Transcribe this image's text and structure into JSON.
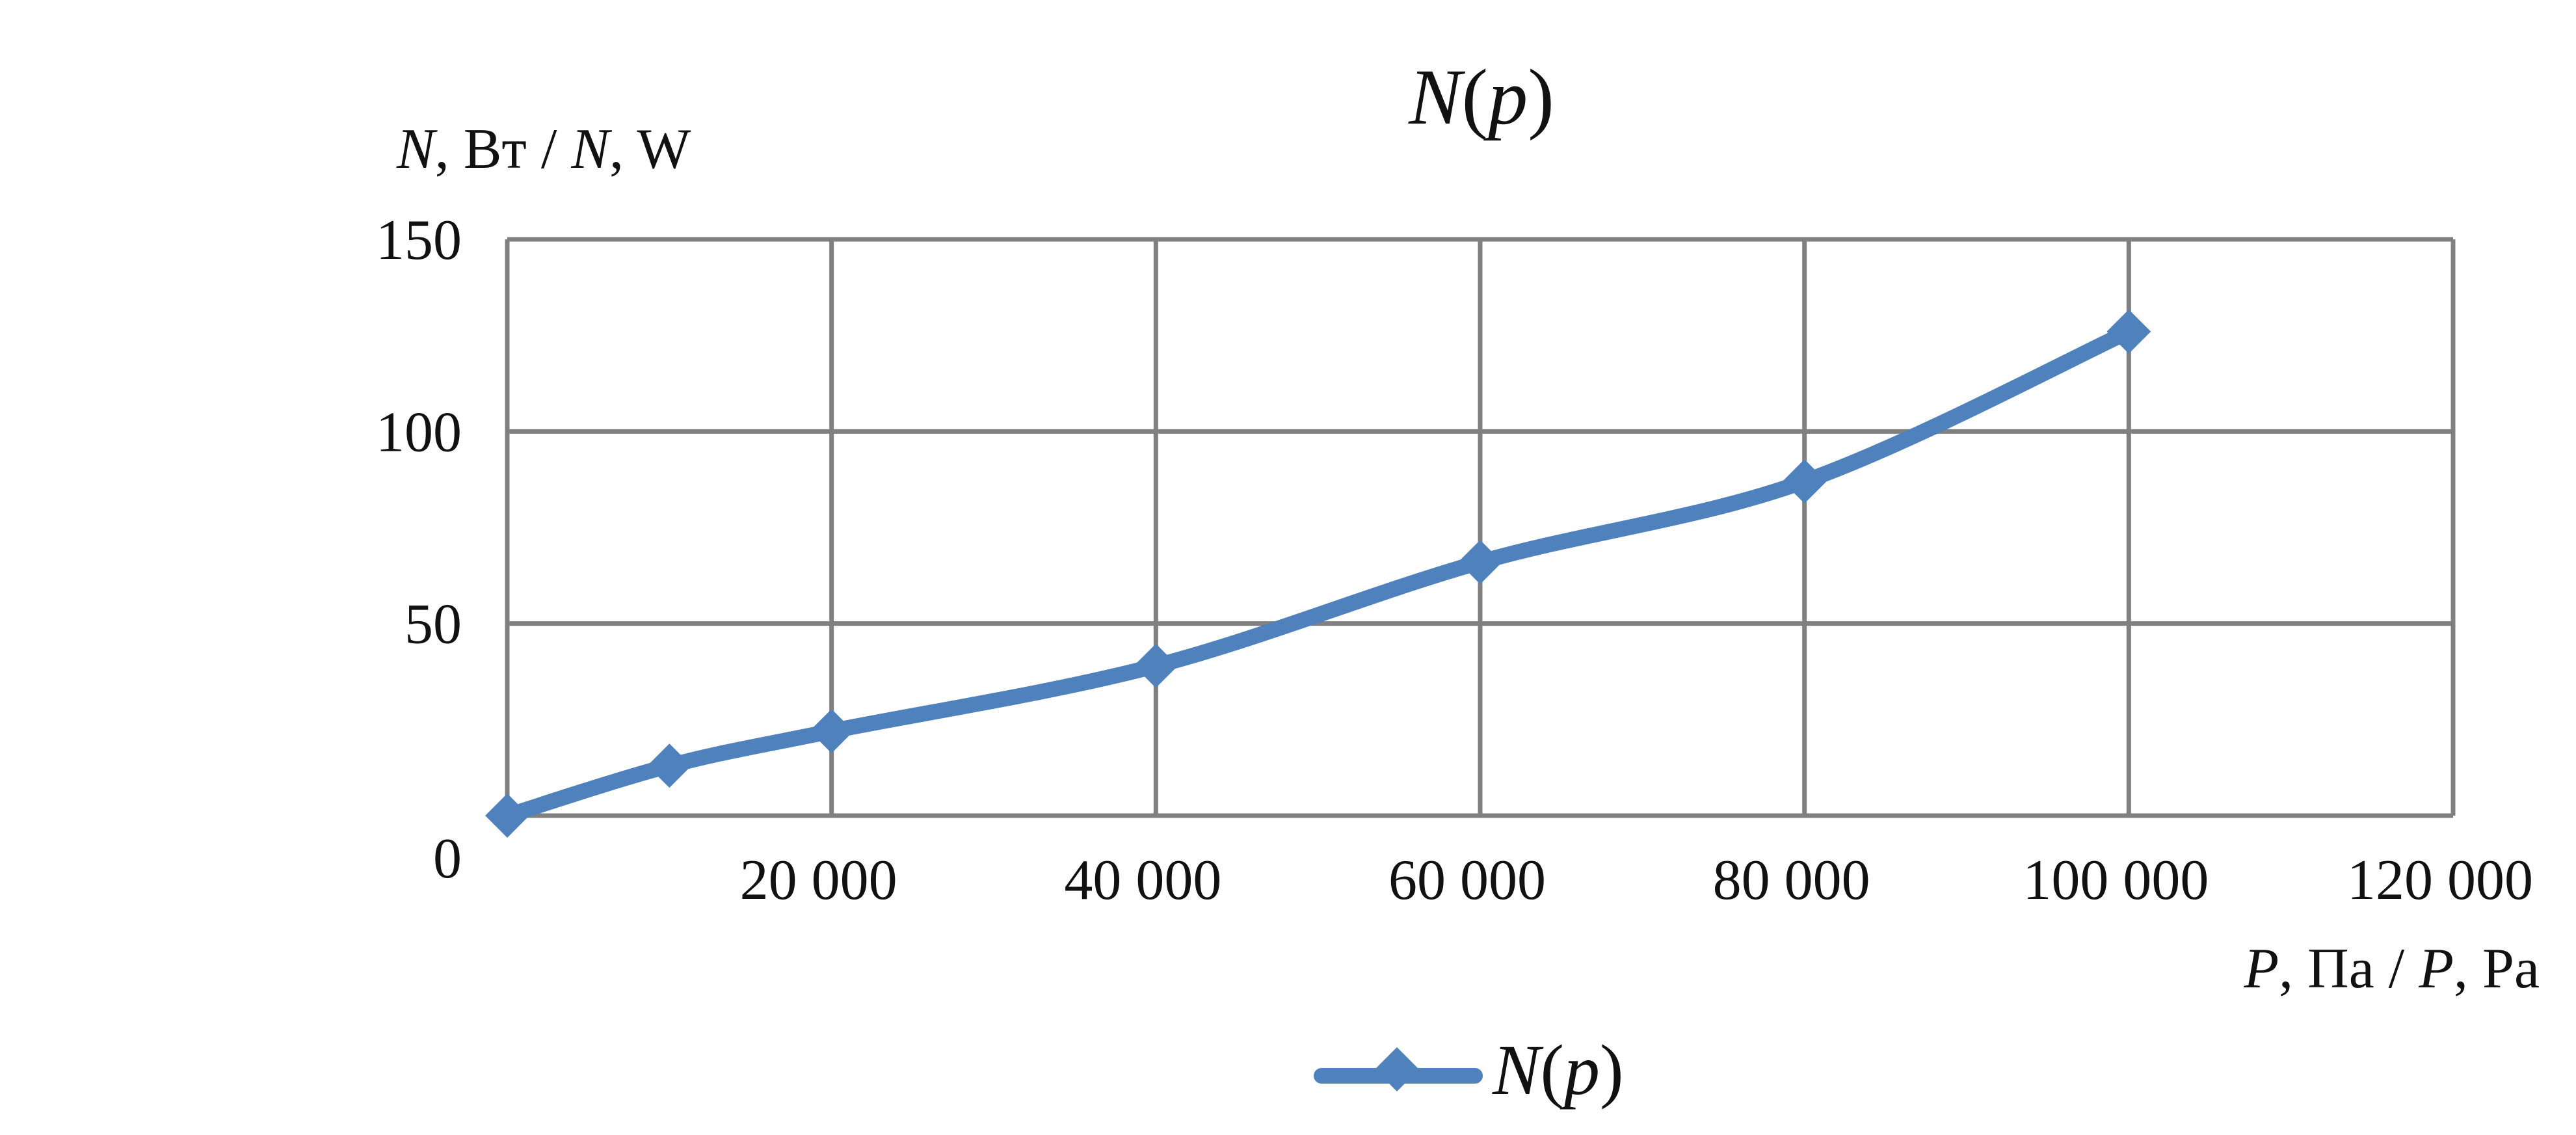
{
  "chart_data": {
    "type": "line",
    "title": {
      "symbol": "N",
      "open": "(",
      "var": "p",
      "close": ")"
    },
    "ylabel": {
      "sym1": "N",
      "unit1": ", Вт / ",
      "sym2": "N",
      "unit2": ", W"
    },
    "xlabel": {
      "sym1": "P",
      "unit1": ", Па / ",
      "sym2": "P",
      "unit2": ", Pa"
    },
    "x_ticks": [
      {
        "value": 20000,
        "label": "20 000"
      },
      {
        "value": 40000,
        "label": "40 000"
      },
      {
        "value": 60000,
        "label": "60 000"
      },
      {
        "value": 80000,
        "label": "80 000"
      },
      {
        "value": 100000,
        "label": "100 000"
      },
      {
        "value": 120000,
        "label": "120 000"
      }
    ],
    "y_ticks": [
      {
        "value": 0,
        "label": "0"
      },
      {
        "value": 50,
        "label": "50"
      },
      {
        "value": 100,
        "label": "100"
      },
      {
        "value": 150,
        "label": "150"
      }
    ],
    "xlim": [
      0,
      120000
    ],
    "ylim": [
      0,
      150
    ],
    "grid": true,
    "legend": "bottom-center",
    "series": [
      {
        "name": {
          "symbol": "N",
          "open": "(",
          "var": "p",
          "close": ")"
        },
        "color": "#4f81bd",
        "marker": "diamond",
        "x": [
          0,
          10000,
          20000,
          40000,
          60000,
          80000,
          100000
        ],
        "y": [
          0,
          13,
          22,
          39,
          66,
          87,
          126
        ]
      }
    ]
  },
  "colors": {
    "series": "#4f81bd",
    "grid": "#808080",
    "text": "#111111",
    "background": "#ffffff"
  }
}
